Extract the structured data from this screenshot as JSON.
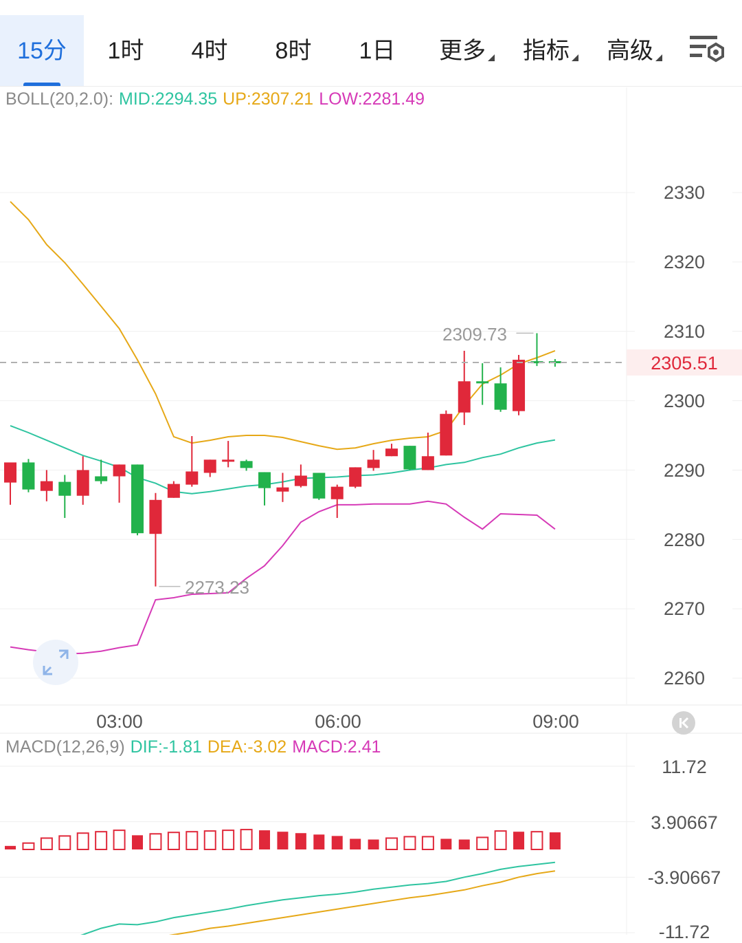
{
  "timeframe_tabs": [
    "15分",
    "1时",
    "4时",
    "8时",
    "1日",
    "更多",
    "指标",
    "高级"
  ],
  "active_tab": "15分",
  "icons": {
    "settings": "settings-sliders-icon",
    "expand": "expand-arrows-icon",
    "scroll": "scroll-to-latest-icon"
  },
  "boll_legend": {
    "name": "BOLL(20,2.0):",
    "mid": "MID:2294.35",
    "up": "UP:2307.21",
    "low": "LOW:2281.49"
  },
  "macd_legend": {
    "name": "MACD(12,26,9)",
    "dif": "DIF:-1.81",
    "dea": "DEA:-3.02",
    "macd": "MACD:2.41"
  },
  "current_price": "2305.51",
  "annotations": {
    "high": "2309.73",
    "low": "2273.23"
  },
  "colors": {
    "up": "#e0283a",
    "down": "#22b24c",
    "mid": "#2ec4a0",
    "upper": "#e6a817",
    "lower": "#d63ab7"
  },
  "chart_data": [
    {
      "type": "candlestick",
      "y_ticks": [
        "2330",
        "2320",
        "2310",
        "2300",
        "2290",
        "2280",
        "2270",
        "2260"
      ],
      "x_ticks": [
        "03:00",
        "06:00",
        "09:00"
      ],
      "ylim": [
        2254,
        2341
      ],
      "candles": [
        {
          "o": 2288.2,
          "h": 2290.6,
          "l": 2285.0,
          "c": 2291.1
        },
        {
          "o": 2291.1,
          "h": 2291.6,
          "l": 2286.8,
          "c": 2287.2
        },
        {
          "o": 2287.0,
          "h": 2290.0,
          "l": 2285.5,
          "c": 2288.4
        },
        {
          "o": 2288.3,
          "h": 2289.3,
          "l": 2283.1,
          "c": 2286.3
        },
        {
          "o": 2286.3,
          "h": 2292.0,
          "l": 2285.0,
          "c": 2290.0
        },
        {
          "o": 2289.1,
          "h": 2291.5,
          "l": 2288.0,
          "c": 2288.4
        },
        {
          "o": 2289.1,
          "h": 2290.8,
          "l": 2285.3,
          "c": 2290.8
        },
        {
          "o": 2290.8,
          "h": 2290.8,
          "l": 2280.6,
          "c": 2280.9
        },
        {
          "o": 2280.8,
          "h": 2286.7,
          "l": 2273.23,
          "c": 2285.7
        },
        {
          "o": 2286.0,
          "h": 2288.4,
          "l": 2286.0,
          "c": 2288.0
        },
        {
          "o": 2287.9,
          "h": 2294.9,
          "l": 2287.6,
          "c": 2289.8
        },
        {
          "o": 2289.6,
          "h": 2291.5,
          "l": 2289.0,
          "c": 2291.5
        },
        {
          "o": 2291.5,
          "h": 2294.2,
          "l": 2290.4,
          "c": 2291.5
        },
        {
          "o": 2291.3,
          "h": 2291.5,
          "l": 2289.9,
          "c": 2290.3
        },
        {
          "o": 2289.7,
          "h": 2289.7,
          "l": 2284.9,
          "c": 2287.4
        },
        {
          "o": 2286.9,
          "h": 2289.6,
          "l": 2285.4,
          "c": 2287.5
        },
        {
          "o": 2287.7,
          "h": 2290.8,
          "l": 2287.5,
          "c": 2289.2
        },
        {
          "o": 2289.6,
          "h": 2289.6,
          "l": 2285.7,
          "c": 2285.9
        },
        {
          "o": 2285.8,
          "h": 2287.9,
          "l": 2283.1,
          "c": 2287.6
        },
        {
          "o": 2287.6,
          "h": 2290.4,
          "l": 2287.4,
          "c": 2290.4
        },
        {
          "o": 2290.3,
          "h": 2292.9,
          "l": 2289.9,
          "c": 2291.5
        },
        {
          "o": 2292.0,
          "h": 2293.8,
          "l": 2292.0,
          "c": 2293.1
        },
        {
          "o": 2293.5,
          "h": 2293.5,
          "l": 2290.0,
          "c": 2290.1
        },
        {
          "o": 2290.0,
          "h": 2295.4,
          "l": 2290.0,
          "c": 2292.0
        },
        {
          "o": 2292.1,
          "h": 2298.6,
          "l": 2292.1,
          "c": 2298.1
        },
        {
          "o": 2298.3,
          "h": 2307.2,
          "l": 2296.5,
          "c": 2302.8
        },
        {
          "o": 2302.8,
          "h": 2305.4,
          "l": 2299.4,
          "c": 2302.7
        },
        {
          "o": 2302.5,
          "h": 2304.8,
          "l": 2298.4,
          "c": 2298.7
        },
        {
          "o": 2298.5,
          "h": 2306.6,
          "l": 2297.9,
          "c": 2305.9
        },
        {
          "o": 2305.7,
          "h": 2309.73,
          "l": 2305.0,
          "c": 2305.4
        },
        {
          "o": 2305.7,
          "h": 2306.0,
          "l": 2304.9,
          "c": 2305.51
        }
      ],
      "boll_up": [
        2328.7,
        2326.1,
        2322.5,
        2319.9,
        2316.8,
        2313.6,
        2310.4,
        2305.9,
        2301.0,
        2294.8,
        2293.9,
        2294.3,
        2294.8,
        2295.0,
        2295.0,
        2294.7,
        2294.1,
        2293.5,
        2293.0,
        2293.2,
        2293.8,
        2294.3,
        2294.6,
        2294.8,
        2295.7,
        2299.3,
        2302.4,
        2303.7,
        2305.3,
        2306.2,
        2307.21
      ],
      "boll_mid": [
        2296.4,
        2295.4,
        2294.3,
        2293.2,
        2292.1,
        2291.3,
        2290.4,
        2288.9,
        2288.1,
        2286.9,
        2286.6,
        2286.9,
        2287.3,
        2287.7,
        2287.9,
        2288.3,
        2288.8,
        2288.9,
        2289.0,
        2289.2,
        2289.3,
        2289.6,
        2290.0,
        2290.3,
        2290.8,
        2291.1,
        2291.8,
        2292.3,
        2293.2,
        2293.9,
        2294.35
      ],
      "boll_low": [
        2264.5,
        2264.1,
        2263.8,
        2263.5,
        2263.6,
        2263.9,
        2264.4,
        2264.8,
        2271.3,
        2271.6,
        2272.1,
        2272.2,
        2272.3,
        2274.4,
        2276.2,
        2279.1,
        2282.5,
        2284.0,
        2285.0,
        2285.0,
        2285.1,
        2285.1,
        2285.1,
        2285.5,
        2285.1,
        2283.2,
        2281.5,
        2283.7,
        2283.6,
        2283.5,
        2281.49
      ]
    },
    {
      "type": "bar",
      "y_ticks": [
        "11.72",
        "3.90667",
        "-3.90667",
        "-11.72"
      ],
      "ylim": [
        -11.72,
        11.72
      ],
      "histogram": [
        0.5,
        0.9,
        1.6,
        1.9,
        2.3,
        2.5,
        2.7,
        2.0,
        2.2,
        2.4,
        2.5,
        2.6,
        2.7,
        2.8,
        2.7,
        2.5,
        2.3,
        2.1,
        1.9,
        1.5,
        1.4,
        1.6,
        1.8,
        1.8,
        1.5,
        1.4,
        1.7,
        2.6,
        2.5,
        2.5,
        2.41
      ],
      "dif": [
        -15.5,
        -14.9,
        -13.7,
        -12.8,
        -12.0,
        -11.1,
        -10.5,
        -10.6,
        -10.2,
        -9.6,
        -9.2,
        -8.8,
        -8.4,
        -7.9,
        -7.5,
        -7.1,
        -6.8,
        -6.5,
        -6.3,
        -6.0,
        -5.6,
        -5.3,
        -5.0,
        -4.8,
        -4.5,
        -3.9,
        -3.4,
        -2.8,
        -2.4,
        -2.1,
        -1.81
      ],
      "dea": [
        -15.9,
        -15.5,
        -15.1,
        -14.6,
        -14.2,
        -13.6,
        -13.2,
        -12.8,
        -12.4,
        -12.0,
        -11.6,
        -11.1,
        -10.8,
        -10.4,
        -10.0,
        -9.6,
        -9.2,
        -8.8,
        -8.4,
        -8.0,
        -7.6,
        -7.2,
        -6.8,
        -6.5,
        -6.1,
        -5.7,
        -5.1,
        -4.6,
        -3.9,
        -3.4,
        -3.02
      ]
    }
  ]
}
